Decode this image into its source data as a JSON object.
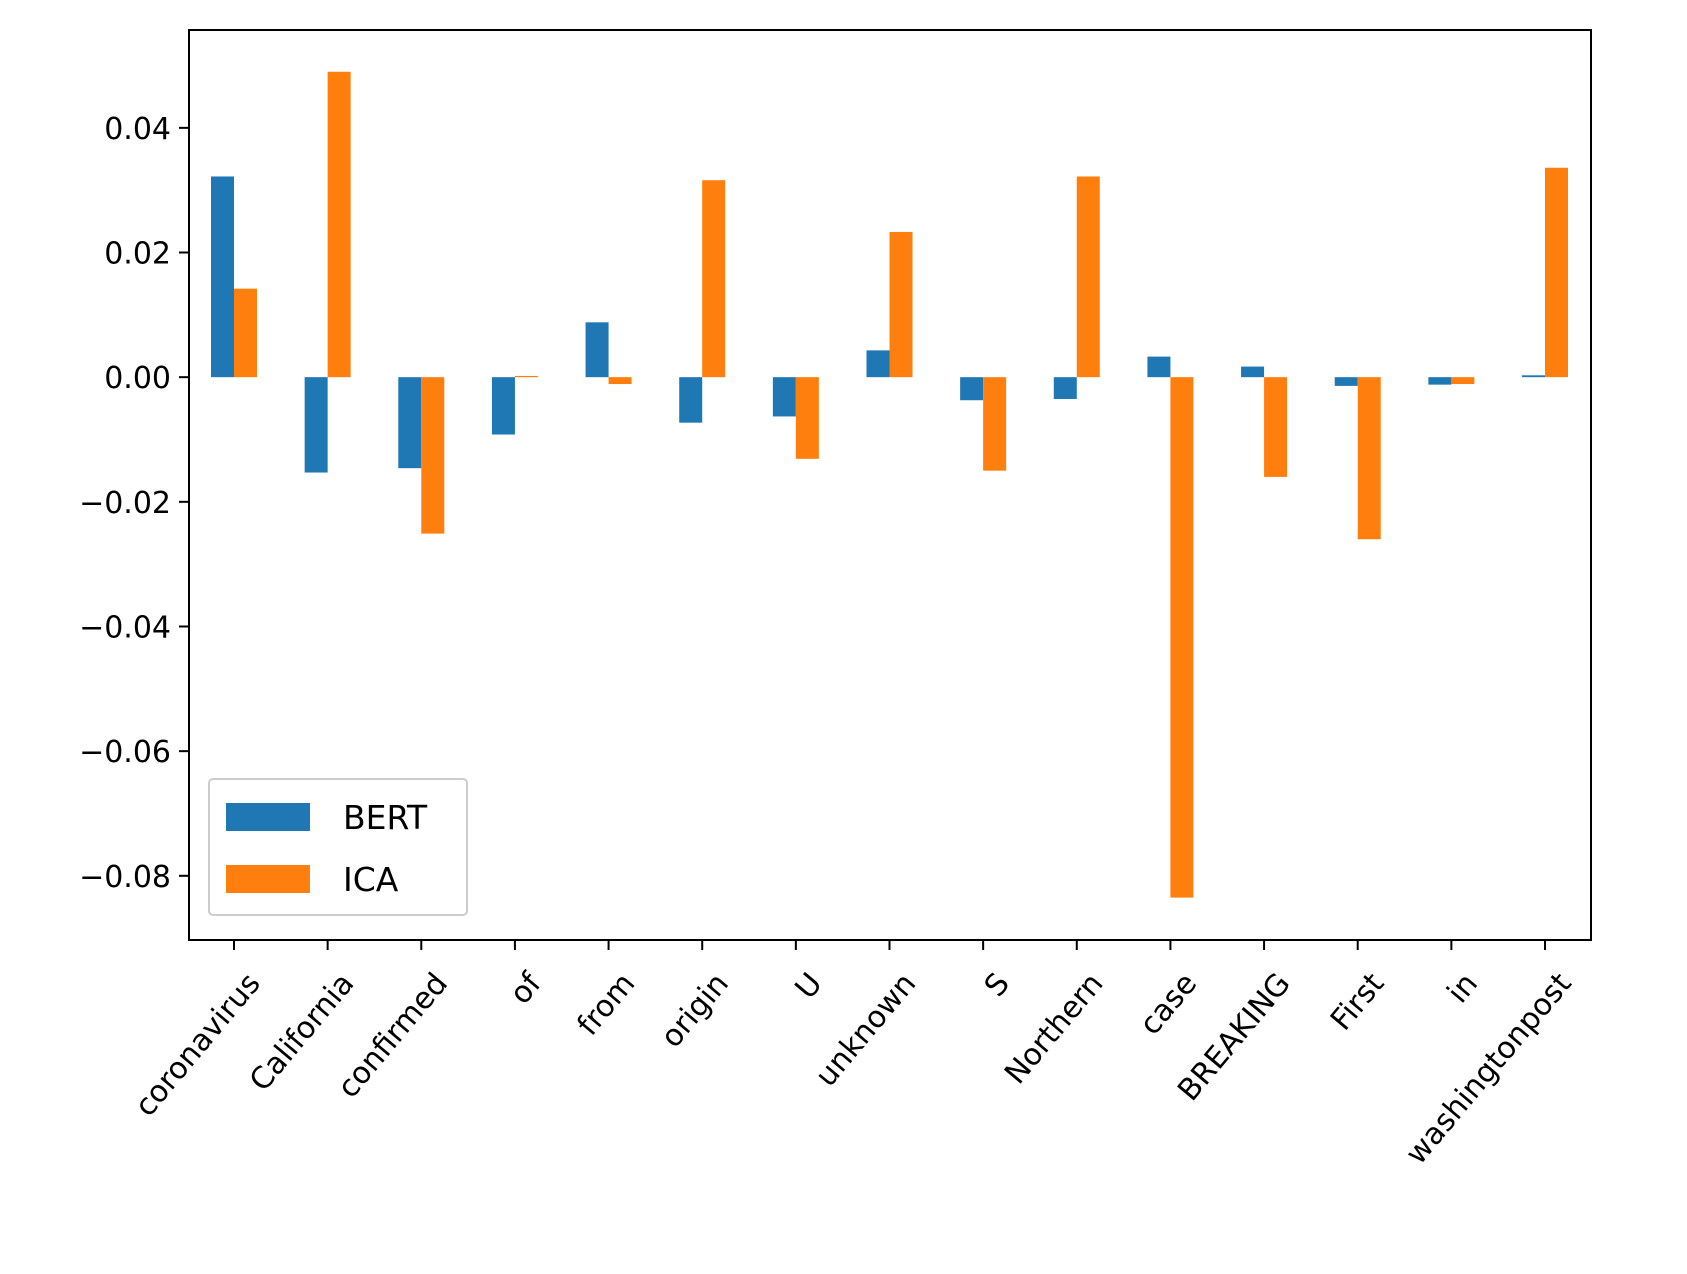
{
  "chart_data": {
    "type": "bar",
    "title": "",
    "xlabel": "",
    "ylabel": "",
    "categories": [
      "coronavirus",
      "California",
      "confirmed",
      "of",
      "from",
      "origin",
      "U",
      "unknown",
      "S",
      "Northern",
      "case",
      "BREAKING",
      "First",
      "in",
      "washingtonpost"
    ],
    "series": [
      {
        "name": "BERT",
        "color": "#1f77b4",
        "values": [
          0.0322,
          -0.0153,
          -0.0146,
          -0.0092,
          0.0088,
          -0.0073,
          -0.0063,
          0.0043,
          -0.0037,
          -0.0035,
          0.0033,
          0.0017,
          -0.0014,
          -0.0012,
          0.0003
        ]
      },
      {
        "name": "ICA",
        "color": "#ff7f0e",
        "values": [
          0.0142,
          0.049,
          -0.0251,
          0.0002,
          -0.0011,
          0.0316,
          -0.0131,
          0.0233,
          -0.015,
          0.0322,
          -0.0835,
          -0.016,
          -0.026,
          -0.0011,
          0.0336
        ]
      }
    ],
    "ylim": [
      -0.0903,
      0.0557
    ],
    "yticks": [
      -0.08,
      -0.06,
      -0.04,
      -0.02,
      0.0,
      0.02,
      0.04
    ],
    "ytick_labels": [
      "−0.08",
      "−0.06",
      "−0.04",
      "−0.02",
      "0.00",
      "0.02",
      "0.04"
    ],
    "grid": false,
    "legend_position": "lower-left"
  }
}
